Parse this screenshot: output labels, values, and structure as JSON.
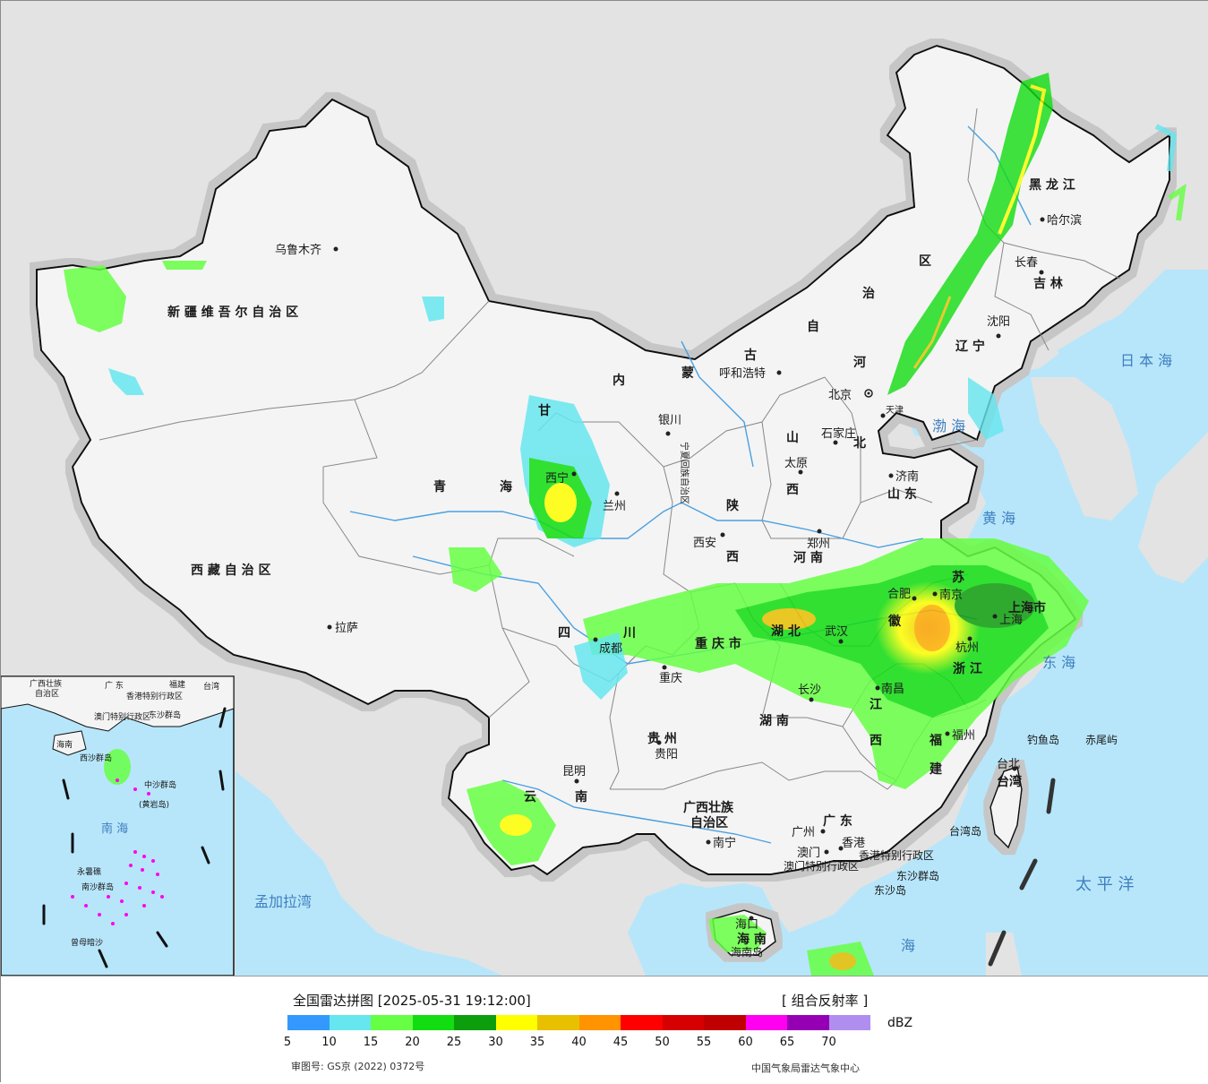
{
  "map": {
    "provinces": [
      {
        "id": "xinjiang",
        "label": "新 疆 维 吾 尔 自 治 区"
      },
      {
        "id": "xizang",
        "label": "西 藏 自 治 区"
      },
      {
        "id": "qinghai-a",
        "label": "青"
      },
      {
        "id": "qinghai-b",
        "label": "海"
      },
      {
        "id": "gansu",
        "label": "甘"
      },
      {
        "id": "sichuan-a",
        "label": "四"
      },
      {
        "id": "sichuan-b",
        "label": "川"
      },
      {
        "id": "yunnan-a",
        "label": "云"
      },
      {
        "id": "yunnan-b",
        "label": "南"
      },
      {
        "id": "guizhou",
        "label": "贵 州"
      },
      {
        "id": "chongqing",
        "label": "重 庆 市"
      },
      {
        "id": "shaanxi-a",
        "label": "陕"
      },
      {
        "id": "shaanxi-b",
        "label": "西"
      },
      {
        "id": "shanxi-a",
        "label": "山"
      },
      {
        "id": "shanxi-b",
        "label": "西"
      },
      {
        "id": "henan",
        "label": "河 南"
      },
      {
        "id": "hubei",
        "label": "湖 北"
      },
      {
        "id": "hunan",
        "label": "湖 南"
      },
      {
        "id": "jiangxi-a",
        "label": "江"
      },
      {
        "id": "jiangxi-b",
        "label": "西"
      },
      {
        "id": "guangxi-a",
        "label": "广西壮族"
      },
      {
        "id": "guangxi-b",
        "label": "自治区"
      },
      {
        "id": "guangdong",
        "label": "广 东"
      },
      {
        "id": "fujian-a",
        "label": "福"
      },
      {
        "id": "fujian-b",
        "label": "建"
      },
      {
        "id": "zhejiang",
        "label": "浙 江"
      },
      {
        "id": "anhui",
        "label": "徽"
      },
      {
        "id": "jiangsu",
        "label": "苏"
      },
      {
        "id": "shanghai",
        "label": "上海市"
      },
      {
        "id": "shandong",
        "label": "山 东"
      },
      {
        "id": "hebei",
        "label": "北"
      },
      {
        "id": "hebei-he",
        "label": "河"
      },
      {
        "id": "neimenggu-a",
        "label": "内"
      },
      {
        "id": "neimenggu-b",
        "label": "蒙"
      },
      {
        "id": "neimenggu-c",
        "label": "古"
      },
      {
        "id": "neimenggu-d",
        "label": "自"
      },
      {
        "id": "neimenggu-e",
        "label": "治"
      },
      {
        "id": "neimenggu-f",
        "label": "区"
      },
      {
        "id": "heilongjiang",
        "label": "黑 龙 江"
      },
      {
        "id": "jilin",
        "label": "吉 林"
      },
      {
        "id": "liaoning",
        "label": "辽 宁"
      },
      {
        "id": "taiwan",
        "label": "台湾"
      },
      {
        "id": "hainan",
        "label": "海 南"
      },
      {
        "id": "ningxia",
        "label": "宁夏回族自治区"
      },
      {
        "id": "hk",
        "label": "香港特别行政区"
      },
      {
        "id": "macau",
        "label": "澳门特别行政区"
      }
    ],
    "cities": [
      {
        "id": "urumqi",
        "label": "乌鲁木齐"
      },
      {
        "id": "lhasa",
        "label": "拉萨"
      },
      {
        "id": "xining",
        "label": "西宁"
      },
      {
        "id": "lanzhou",
        "label": "兰州"
      },
      {
        "id": "yinchuan",
        "label": "银川"
      },
      {
        "id": "hohhot",
        "label": "呼和浩特"
      },
      {
        "id": "beijing",
        "label": "北京"
      },
      {
        "id": "tianjin",
        "label": "天津"
      },
      {
        "id": "shijiazhuang",
        "label": "石家庄"
      },
      {
        "id": "taiyuan",
        "label": "太原"
      },
      {
        "id": "jinan",
        "label": "济南"
      },
      {
        "id": "zhengzhou",
        "label": "郑州"
      },
      {
        "id": "xian",
        "label": "西安"
      },
      {
        "id": "chengdu",
        "label": "成都"
      },
      {
        "id": "chongqing-city",
        "label": "重庆"
      },
      {
        "id": "guiyang",
        "label": "贵阳"
      },
      {
        "id": "kunming",
        "label": "昆明"
      },
      {
        "id": "nanning",
        "label": "南宁"
      },
      {
        "id": "guangzhou",
        "label": "广州"
      },
      {
        "id": "hongkong",
        "label": "香港"
      },
      {
        "id": "macao",
        "label": "澳门"
      },
      {
        "id": "haikou",
        "label": "海口"
      },
      {
        "id": "changsha",
        "label": "长沙"
      },
      {
        "id": "nanchang",
        "label": "南昌"
      },
      {
        "id": "wuhan",
        "label": "武汉"
      },
      {
        "id": "hefei",
        "label": "合肥"
      },
      {
        "id": "nanjing",
        "label": "南京"
      },
      {
        "id": "shanghai-city",
        "label": "上海"
      },
      {
        "id": "hangzhou",
        "label": "杭州"
      },
      {
        "id": "fuzhou",
        "label": "福州"
      },
      {
        "id": "taipei",
        "label": "台北"
      },
      {
        "id": "shenyang",
        "label": "沈阳"
      },
      {
        "id": "changchun",
        "label": "长春"
      },
      {
        "id": "harbin",
        "label": "哈尔滨"
      }
    ],
    "seas": [
      {
        "id": "japan-sea",
        "label": "日 本 海"
      },
      {
        "id": "bohai",
        "label": "渤 海"
      },
      {
        "id": "yellow-sea",
        "label": "黄 海"
      },
      {
        "id": "east-sea",
        "label": "东 海"
      },
      {
        "id": "pacific",
        "label": "太 平 洋"
      },
      {
        "id": "bengal",
        "label": "孟加拉湾"
      },
      {
        "id": "south-sea",
        "label": "南 海"
      },
      {
        "id": "south-sea-main",
        "label": "海"
      }
    ],
    "islands": [
      {
        "id": "diaoyu",
        "label": "钓鱼岛"
      },
      {
        "id": "chiwei",
        "label": "赤尾屿"
      },
      {
        "id": "taiwan-isl",
        "label": "台湾岛"
      },
      {
        "id": "dongsha-qd",
        "label": "东沙群岛"
      },
      {
        "id": "dongsha-d",
        "label": "东沙岛"
      },
      {
        "id": "hainan-isl",
        "label": "海南岛"
      }
    ],
    "inset": {
      "labels": [
        {
          "id": "ins-guangxi",
          "label": "广西壮族"
        },
        {
          "id": "ins-zizhiqu",
          "label": "自治区"
        },
        {
          "id": "ins-guangdong",
          "label": "广 东"
        },
        {
          "id": "ins-fujian",
          "label": "福建"
        },
        {
          "id": "ins-taiwan",
          "label": "台湾"
        },
        {
          "id": "ins-hk",
          "label": "香港特别行政区"
        },
        {
          "id": "ins-macau",
          "label": "澳门特别行政区"
        },
        {
          "id": "ins-dongsha",
          "label": "东沙群岛"
        },
        {
          "id": "ins-xisha",
          "label": "西沙群岛"
        },
        {
          "id": "ins-zhongsha",
          "label": "中沙群岛"
        },
        {
          "id": "ins-huangyan",
          "label": "(黄岩岛)"
        },
        {
          "id": "ins-nansha",
          "label": "南沙群岛"
        },
        {
          "id": "ins-yongshu",
          "label": "永暑礁"
        },
        {
          "id": "ins-zengmu",
          "label": "曾母暗沙"
        },
        {
          "id": "ins-hainan",
          "label": "海南"
        },
        {
          "id": "ins-nanhai",
          "label": "南 海"
        }
      ]
    }
  },
  "legend": {
    "title": "全国雷达拼图 [2025-05-31 19:12:00]",
    "product": "[ 组合反射率 ]",
    "unit": "dBZ",
    "scale": [
      {
        "color": "#3399ff",
        "label": "5"
      },
      {
        "color": "#66e6ee",
        "label": "10"
      },
      {
        "color": "#66ff44",
        "label": "15"
      },
      {
        "color": "#11dd11",
        "label": "20"
      },
      {
        "color": "#0d9e0d",
        "label": "25"
      },
      {
        "color": "#ffff00",
        "label": "30"
      },
      {
        "color": "#e8c000",
        "label": "35"
      },
      {
        "color": "#ff9300",
        "label": "40"
      },
      {
        "color": "#ff0000",
        "label": "45"
      },
      {
        "color": "#d60000",
        "label": "50"
      },
      {
        "color": "#c00000",
        "label": "55"
      },
      {
        "color": "#ff00f0",
        "label": "60"
      },
      {
        "color": "#9600b4",
        "label": "65"
      },
      {
        "color": "#b08ef0",
        "label": "70"
      }
    ],
    "approval_no": "审图号: GS京 (2022) 0372号",
    "credit": "中国气象局雷达气象中心"
  },
  "colors": {
    "sea": "#b7e6fa",
    "land_china": "#f4f4f4",
    "land_foreign": "#e3e3e3",
    "border": "#111111",
    "province_border": "#777777",
    "river": "#4aa0e0"
  }
}
